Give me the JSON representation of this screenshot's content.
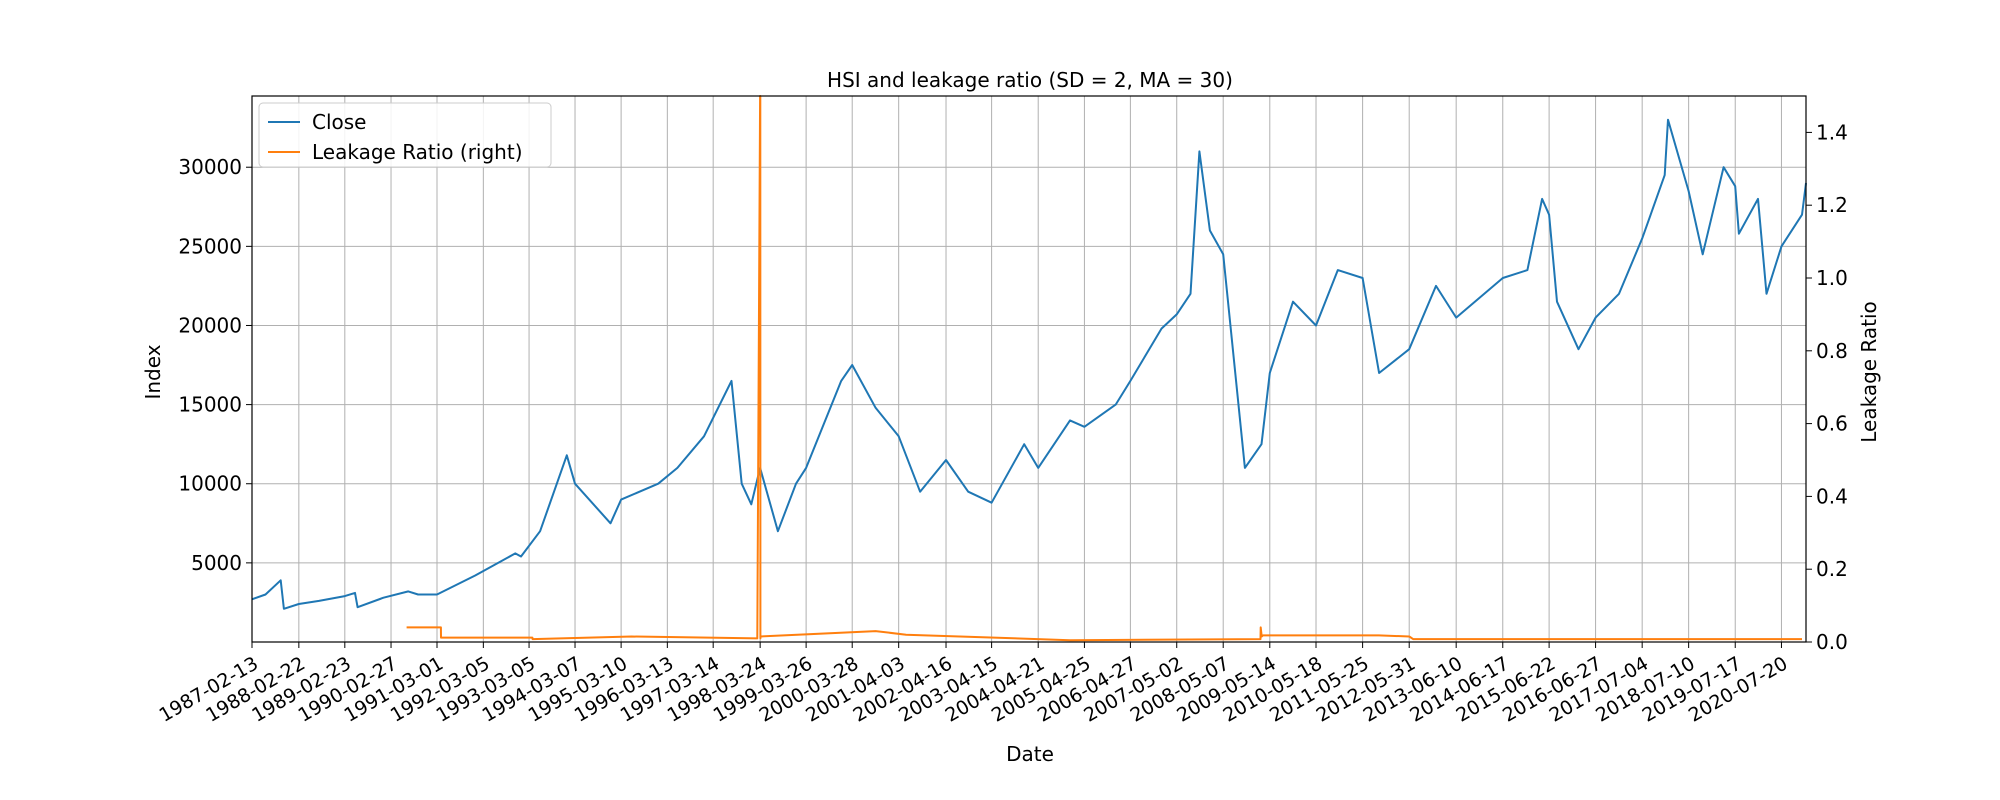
{
  "chart_data": {
    "type": "line",
    "title": "HSI and leakage ratio (SD = 2, MA = 30)",
    "xlabel": "Date",
    "ylabel_left": "Index",
    "ylabel_right": "Leakage Ratio",
    "x_range": [
      "1987-02-13",
      "2021-02-01"
    ],
    "x_ticks": [
      "1987-02-13",
      "1988-02-22",
      "1989-02-23",
      "1990-02-27",
      "1991-03-01",
      "1992-03-05",
      "1993-03-05",
      "1994-03-07",
      "1995-03-10",
      "1996-03-13",
      "1997-03-14",
      "1998-03-24",
      "1999-03-26",
      "2000-03-28",
      "2001-04-03",
      "2002-04-16",
      "2003-04-15",
      "2004-04-21",
      "2005-04-25",
      "2006-04-27",
      "2007-05-02",
      "2008-05-07",
      "2009-05-14",
      "2010-05-18",
      "2011-05-25",
      "2012-05-31",
      "2013-06-10",
      "2014-06-17",
      "2015-06-22",
      "2016-06-27",
      "2017-07-04",
      "2018-07-10",
      "2019-07-17",
      "2020-07-20"
    ],
    "y_left": {
      "ylim": [
        0,
        34500
      ],
      "ticks": [
        5000,
        10000,
        15000,
        20000,
        25000,
        30000
      ]
    },
    "y_right": {
      "ylim": [
        0,
        1.5
      ],
      "ticks": [
        0.0,
        0.2,
        0.4,
        0.6,
        0.8,
        1.0,
        1.2,
        1.4
      ]
    },
    "grid": true,
    "legend_position": "top-left",
    "series": [
      {
        "name": "Close",
        "axis": "left",
        "color": "#1f77b4",
        "x": [
          "1987-02-13",
          "1987-06-01",
          "1987-09-30",
          "1987-10-26",
          "1988-02-22",
          "1988-08-01",
          "1989-02-23",
          "1989-05-15",
          "1989-06-05",
          "1989-12-29",
          "1990-07-15",
          "1990-10-01",
          "1991-03-01",
          "1991-12-31",
          "1992-11-15",
          "1992-12-31",
          "1993-06-01",
          "1993-12-31",
          "1994-03-07",
          "1994-12-15",
          "1995-03-10",
          "1995-12-31",
          "1996-06-01",
          "1996-12-31",
          "1997-08-07",
          "1997-10-28",
          "1998-01-12",
          "1998-03-24",
          "1998-08-13",
          "1999-01-04",
          "1999-03-26",
          "1999-12-31",
          "2000-03-28",
          "2000-10-01",
          "2001-04-03",
          "2001-09-21",
          "2002-04-16",
          "2002-10-10",
          "2003-04-15",
          "2003-12-31",
          "2004-04-21",
          "2004-12-31",
          "2005-04-25",
          "2005-12-31",
          "2006-04-27",
          "2006-12-31",
          "2007-05-02",
          "2007-08-20",
          "2007-10-30",
          "2008-01-22",
          "2008-05-07",
          "2008-10-27",
          "2009-03-09",
          "2009-05-14",
          "2009-11-15",
          "2010-05-18",
          "2010-11-08",
          "2011-05-25",
          "2011-10-04",
          "2012-05-31",
          "2012-12-31",
          "2013-06-10",
          "2014-06-17",
          "2014-12-31",
          "2015-04-27",
          "2015-06-22",
          "2015-08-24",
          "2016-02-12",
          "2016-06-27",
          "2016-12-31",
          "2017-07-04",
          "2017-12-31",
          "2018-01-26",
          "2018-07-10",
          "2018-10-30",
          "2019-04-15",
          "2019-07-17",
          "2019-08-15",
          "2020-01-15",
          "2020-03-23",
          "2020-07-20",
          "2020-12-31",
          "2021-02-01"
        ],
        "y": [
          2700,
          3000,
          3900,
          2100,
          2400,
          2600,
          2900,
          3100,
          2200,
          2800,
          3200,
          3000,
          3000,
          4200,
          5600,
          5400,
          7000,
          11800,
          10000,
          7500,
          9000,
          10000,
          11000,
          13000,
          16500,
          10000,
          8700,
          11000,
          7000,
          10000,
          11000,
          16500,
          17500,
          14800,
          13000,
          9500,
          11500,
          9500,
          8800,
          12500,
          11000,
          14000,
          13600,
          15000,
          16500,
          19800,
          20700,
          22000,
          31000,
          26000,
          24500,
          11000,
          12500,
          17000,
          21500,
          20000,
          23500,
          23000,
          17000,
          18500,
          22500,
          20500,
          23000,
          23500,
          28000,
          27000,
          21500,
          18500,
          20500,
          22000,
          25500,
          29500,
          33000,
          28500,
          24500,
          30000,
          28800,
          25800,
          28000,
          22000,
          25000,
          27000,
          29000
        ]
      },
      {
        "name": "Leakage Ratio (right)",
        "axis": "right",
        "color": "#ff7f0e",
        "x": [
          "1990-07-01",
          "1991-04-01",
          "1991-04-02",
          "1993-04-01",
          "1993-04-02",
          "1995-06-01",
          "1998-03-01",
          "1998-03-24",
          "1998-03-25",
          "1998-03-26",
          "1998-03-27",
          "2000-10-01",
          "2001-06-01",
          "2005-01-01",
          "2009-03-01",
          "2009-03-02",
          "2009-03-10",
          "2009-03-20",
          "2009-04-01",
          "2011-10-01",
          "2012-06-01",
          "2012-07-01",
          "2020-12-31"
        ],
        "y": [
          0.04,
          0.04,
          0.012,
          0.012,
          0.008,
          0.015,
          0.01,
          1.5,
          1.5,
          0.01,
          0.015,
          0.03,
          0.02,
          0.005,
          0.008,
          0.04,
          0.015,
          0.018,
          0.018,
          0.018,
          0.015,
          0.008,
          0.008
        ]
      }
    ]
  }
}
